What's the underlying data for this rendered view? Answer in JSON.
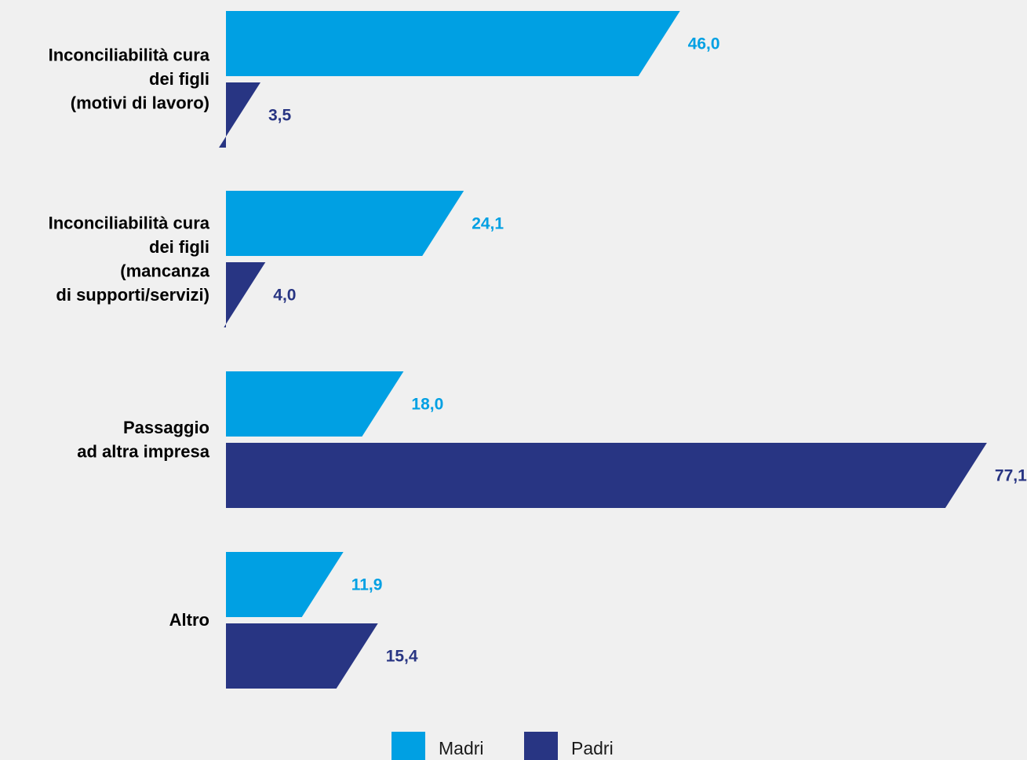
{
  "chart_data": {
    "type": "bar",
    "orientation": "horizontal",
    "categories": [
      "Inconciliabilità cura dei figli (motivi di lavoro)",
      "Inconciliabilità cura dei figli (mancanza di supporti/servizi)",
      "Passaggio ad altra impresa",
      "Altro"
    ],
    "category_label_lines": [
      [
        "Inconciliabilità cura",
        "dei figli",
        "(motivi di lavoro)"
      ],
      [
        "Inconciliabilità cura",
        "dei figli",
        "(mancanza",
        "di supporti/servizi)"
      ],
      [
        "Passaggio",
        "ad altra impresa"
      ],
      [
        "Altro"
      ]
    ],
    "series": [
      {
        "name": "Madri",
        "color": "#00a0e3",
        "values": [
          46.0,
          24.1,
          18.0,
          11.9
        ],
        "value_labels": [
          "46,0",
          "24,1",
          "18,0",
          "11,9"
        ]
      },
      {
        "name": "Padri",
        "color": "#283583",
        "values": [
          3.5,
          4.0,
          77.1,
          15.4
        ],
        "value_labels": [
          "3,5",
          "4,0",
          "77,1",
          "15,4"
        ]
      }
    ],
    "xlim": [
      0,
      77.1
    ],
    "grid": false,
    "legend_position": "bottom-center",
    "title": "",
    "xlabel": "",
    "ylabel": ""
  }
}
